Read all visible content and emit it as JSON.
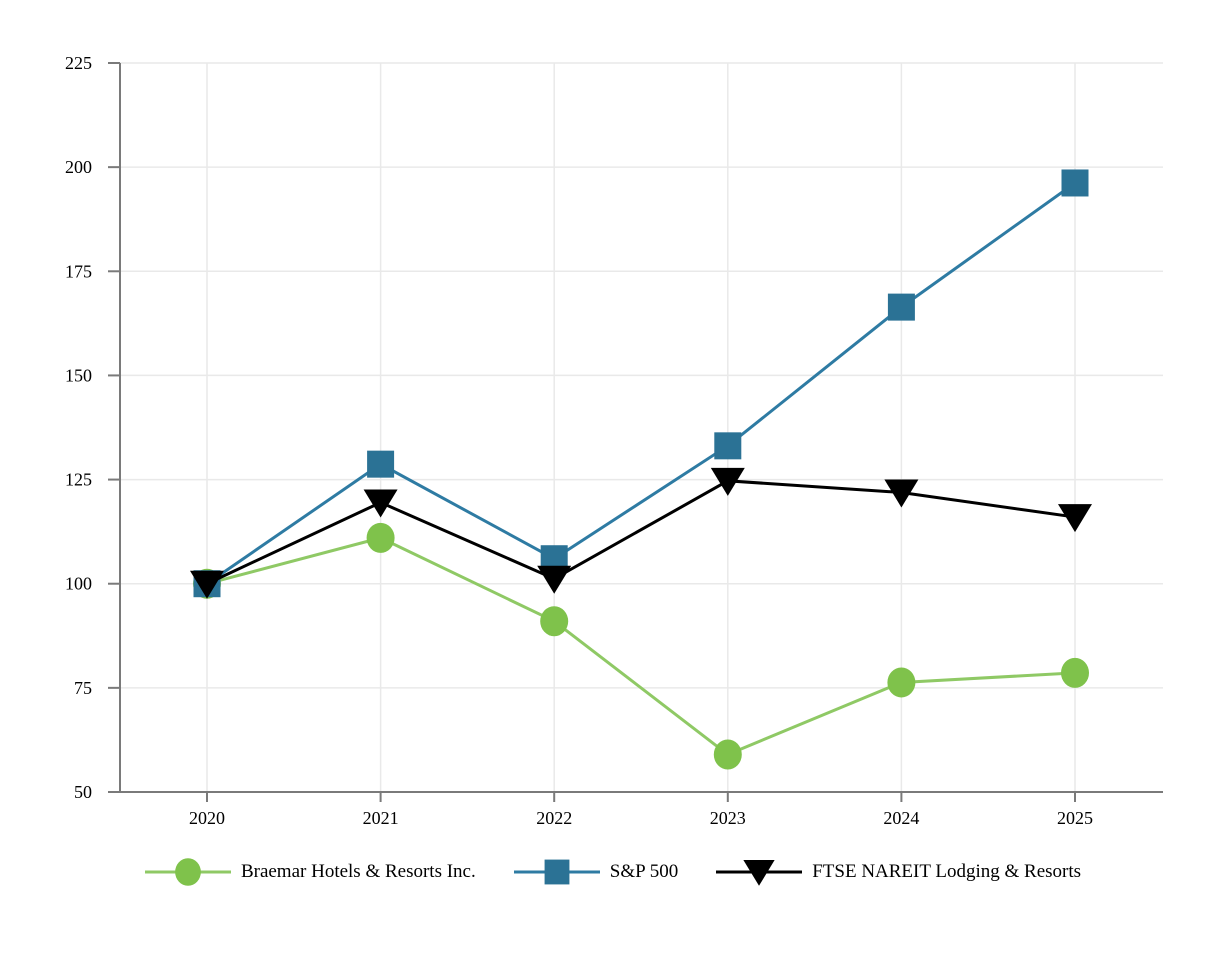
{
  "chart_data": {
    "type": "line",
    "title": "",
    "xlabel": "",
    "ylabel": "",
    "x": [
      "2020",
      "2021",
      "2022",
      "2023",
      "2024",
      "2025"
    ],
    "ylim": [
      50,
      225
    ],
    "yticks": [
      50,
      75,
      100,
      125,
      150,
      175,
      200,
      225
    ],
    "grid": true,
    "legend_position": "bottom-center",
    "style": {
      "axis_color": "#7a7a7a",
      "grid_color": "#e9e9e9",
      "tick_label_color": "#000000",
      "background": "#ffffff"
    },
    "series": [
      {
        "name": "Braemar Hotels & Resorts Inc.",
        "marker": "circle",
        "line_color": "#8fc965",
        "marker_color": "#7fc24b",
        "values": [
          100,
          111.0,
          91.0,
          59.0,
          76.3,
          78.6
        ]
      },
      {
        "name": "S&P 500",
        "marker": "square",
        "line_color": "#2e7ba3",
        "marker_color": "#2b7295",
        "values": [
          100,
          128.7,
          106.0,
          133.1,
          166.4,
          196.2
        ]
      },
      {
        "name": "FTSE NAREIT Lodging & Resorts",
        "marker": "triangle-down",
        "line_color": "#000000",
        "marker_color": "#000000",
        "values": [
          100,
          119.5,
          101.2,
          124.7,
          121.9,
          116.0
        ]
      }
    ]
  }
}
